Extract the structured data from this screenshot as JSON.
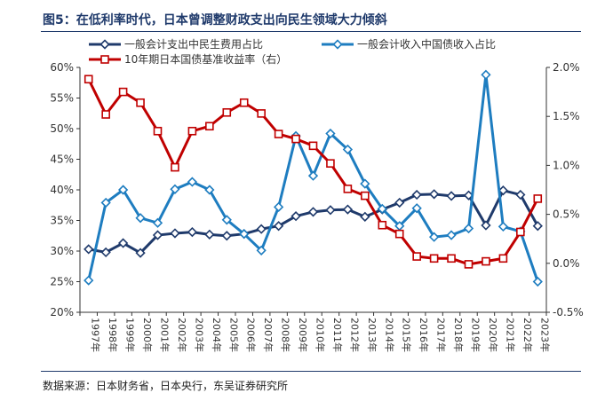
{
  "title": "图5：在低利率时代，日本曾调整财政支出向民生领域大力倾斜",
  "source": "数据来源：日本财务省，日本央行，东吴证券研究所",
  "chart_data": {
    "type": "line",
    "x": [
      "1997年",
      "1998年",
      "1999年",
      "2000年",
      "2001年",
      "2002年",
      "2003年",
      "2004年",
      "2005年",
      "2006年",
      "2007年",
      "2008年",
      "2009年",
      "2010年",
      "2011年",
      "2012年",
      "2013年",
      "2014年",
      "2015年",
      "2016年",
      "2017年",
      "2018年",
      "2019年",
      "2020年",
      "2021年",
      "2022年",
      "2023年"
    ],
    "y_left": {
      "min": 20,
      "max": 60,
      "ticks": [
        "20%",
        "25%",
        "30%",
        "35%",
        "40%",
        "45%",
        "50%",
        "55%",
        "60%"
      ]
    },
    "y_right": {
      "min": -0.5,
      "max": 2.0,
      "ticks": [
        "-0.5%",
        "0.0%",
        "0.5%",
        "1.0%",
        "1.5%",
        "2.0%"
      ]
    },
    "legend_placement": "top-left",
    "series": [
      {
        "name": "一般会计支出中民生费用占比",
        "axis": "left",
        "color": "#1f3a6b",
        "marker": "diamond",
        "values": [
          30.3,
          29.8,
          31.3,
          29.7,
          32.6,
          32.9,
          33.1,
          32.7,
          32.5,
          32.8,
          33.6,
          34.1,
          35.7,
          36.4,
          36.7,
          36.8,
          35.6,
          36.8,
          37.9,
          39.2,
          39.3,
          39.0,
          39.1,
          34.2,
          39.9,
          39.2,
          34.1
        ]
      },
      {
        "name": "一般会计收入中国债收入占比",
        "axis": "left",
        "color": "#1e7dc0",
        "marker": "diamond",
        "values": [
          25.2,
          37.9,
          40.0,
          35.4,
          34.6,
          40.1,
          41.3,
          40.0,
          35.1,
          32.8,
          30.1,
          37.2,
          48.8,
          42.3,
          49.2,
          46.6,
          41.0,
          36.9,
          34.1,
          37.0,
          32.3,
          32.6,
          33.7,
          58.8,
          34.0,
          33.2,
          25.0
        ]
      },
      {
        "name": "10年期日本国债基准收益率（右）",
        "axis": "right",
        "color": "#c00000",
        "marker": "square",
        "values": [
          1.88,
          1.52,
          1.75,
          1.64,
          1.35,
          0.98,
          1.35,
          1.4,
          1.54,
          1.64,
          1.53,
          1.32,
          1.27,
          1.2,
          1.02,
          0.76,
          0.69,
          0.39,
          0.3,
          0.07,
          0.05,
          0.05,
          -0.01,
          0.02,
          0.05,
          0.32,
          0.66
        ]
      }
    ]
  }
}
